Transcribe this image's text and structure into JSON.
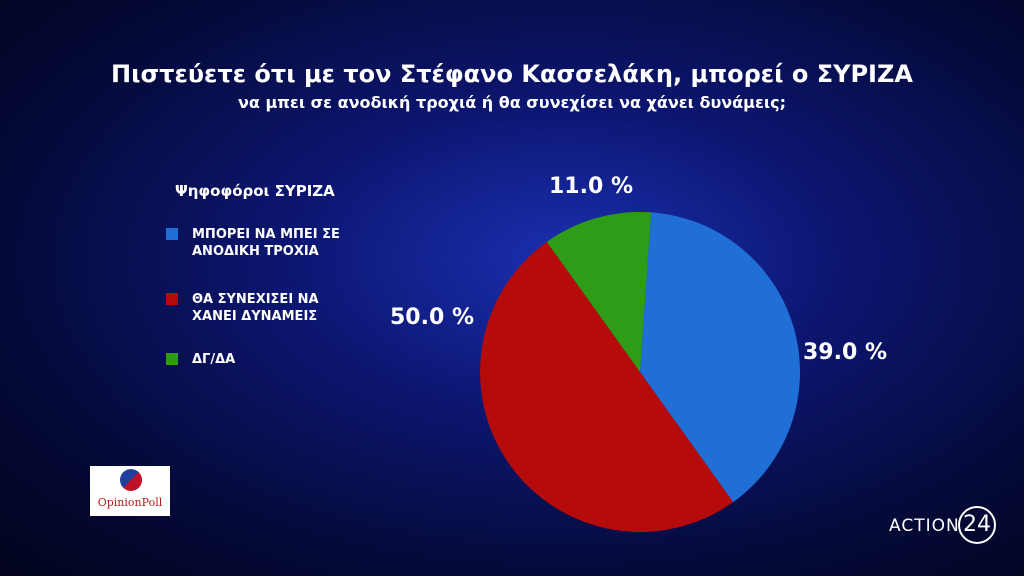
{
  "chart_data": {
    "type": "pie",
    "title": "Πιστεύετε ότι με τον Στέφανο Κασσελάκη, μπορεί ο ΣΥΡΙΖΑ",
    "subtitle": "να μπει σε ανοδική τροχιά ή θα συνεχίσει να χάνει δυνάμεις;",
    "legend_title": "Ψηφοφόροι ΣΥΡΙΖΑ",
    "categories": [
      "ΜΠΟΡΕΙ ΝΑ ΜΠΕΙ ΣΕ ΑΝΟΔΙΚΗ ΤΡΟΧΙΑ",
      "ΘΑ ΣΥΝΕΧΙΣΕΙ ΝΑ ΧΑΝΕΙ ΔΥΝΑΜΕΙΣ",
      "ΔΓ/ΔΑ"
    ],
    "values": [
      39,
      50,
      11
    ],
    "value_labels": [
      "39.0 %",
      "50.0 %",
      "11.0 %"
    ],
    "colors": [
      "#1f6fd6",
      "#b50b0b",
      "#2e9c16"
    ],
    "legend": "left"
  },
  "source_logo": "OpinionPoll",
  "channel_logo": {
    "name": "ACTION",
    "number": "24"
  }
}
